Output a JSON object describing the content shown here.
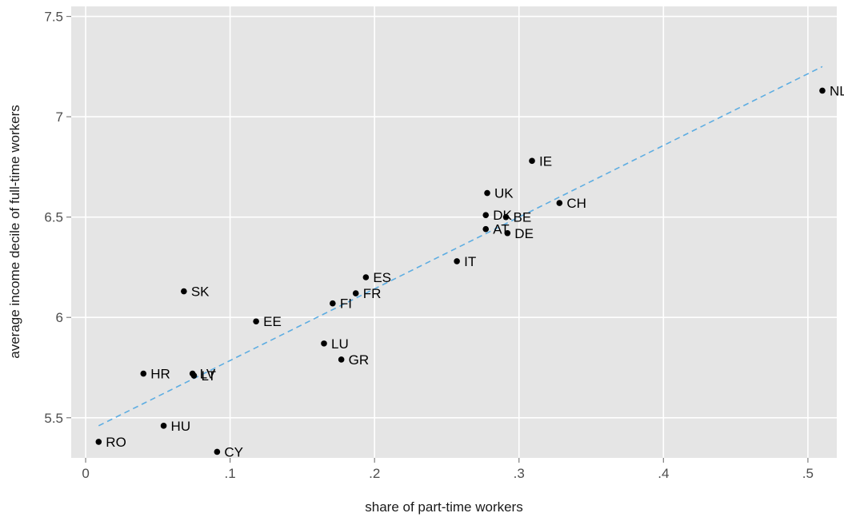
{
  "chart_data": {
    "type": "scatter",
    "title": "",
    "xlabel": "share of part-time workers",
    "ylabel": "average income decile of full-time workers",
    "xlim": [
      -0.01,
      0.52
    ],
    "ylim": [
      5.3,
      7.55
    ],
    "x_ticks": [
      {
        "value": 0,
        "label": "0"
      },
      {
        "value": 0.1,
        "label": ".1"
      },
      {
        "value": 0.2,
        "label": ".2"
      },
      {
        "value": 0.3,
        "label": ".3"
      },
      {
        "value": 0.4,
        "label": ".4"
      },
      {
        "value": 0.5,
        "label": ".5"
      }
    ],
    "y_ticks": [
      {
        "value": 5.5,
        "label": "5.5"
      },
      {
        "value": 6,
        "label": "6"
      },
      {
        "value": 6.5,
        "label": "6.5"
      },
      {
        "value": 7,
        "label": "7"
      },
      {
        "value": 7.5,
        "label": "7.5"
      }
    ],
    "grid": true,
    "points": [
      {
        "label": "NL",
        "x": 0.51,
        "y": 7.13
      },
      {
        "label": "IE",
        "x": 0.309,
        "y": 6.78
      },
      {
        "label": "UK",
        "x": 0.278,
        "y": 6.62
      },
      {
        "label": "CH",
        "x": 0.328,
        "y": 6.57
      },
      {
        "label": "DK",
        "x": 0.277,
        "y": 6.51
      },
      {
        "label": "BE",
        "x": 0.291,
        "y": 6.5
      },
      {
        "label": "AT",
        "x": 0.277,
        "y": 6.44
      },
      {
        "label": "DE",
        "x": 0.292,
        "y": 6.42
      },
      {
        "label": "IT",
        "x": 0.257,
        "y": 6.28
      },
      {
        "label": "ES",
        "x": 0.194,
        "y": 6.2
      },
      {
        "label": "FR",
        "x": 0.187,
        "y": 6.12
      },
      {
        "label": "FI",
        "x": 0.171,
        "y": 6.07
      },
      {
        "label": "SK",
        "x": 0.068,
        "y": 6.13
      },
      {
        "label": "EE",
        "x": 0.118,
        "y": 5.98
      },
      {
        "label": "LU",
        "x": 0.165,
        "y": 5.87
      },
      {
        "label": "GR",
        "x": 0.177,
        "y": 5.79
      },
      {
        "label": "HR",
        "x": 0.04,
        "y": 5.72
      },
      {
        "label": "LV",
        "x": 0.074,
        "y": 5.72
      },
      {
        "label": "LT",
        "x": 0.075,
        "y": 5.71
      },
      {
        "label": "HU",
        "x": 0.054,
        "y": 5.46
      },
      {
        "label": "RO",
        "x": 0.009,
        "y": 5.38
      },
      {
        "label": "CY",
        "x": 0.091,
        "y": 5.33
      }
    ],
    "fit_line": {
      "x": [
        0.009,
        0.51
      ],
      "y": [
        5.46,
        7.25
      ],
      "style": "dashed"
    },
    "colors": {
      "panel": "#e5e5e5",
      "grid": "#ffffff",
      "point": "#000000",
      "fit_line": "#5dade2",
      "tick": "#7f7f7f"
    }
  }
}
